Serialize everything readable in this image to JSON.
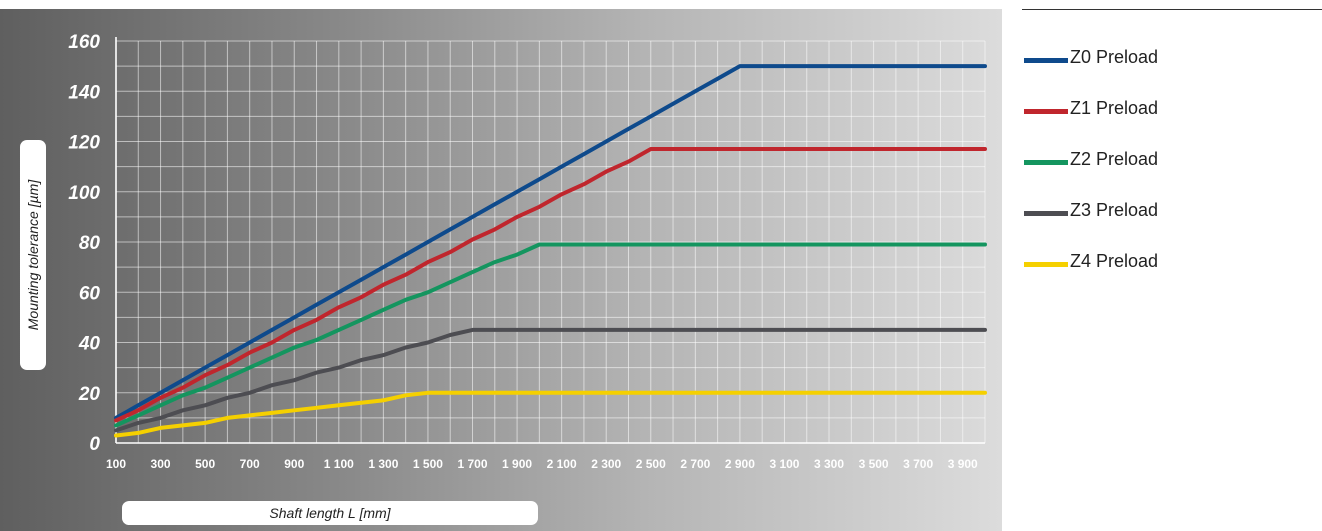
{
  "chart_data": {
    "type": "line",
    "title": "",
    "xlabel": "Shaft length L [mm]",
    "ylabel": "Mounting tolerance  [µm]",
    "xlim": [
      100,
      4000
    ],
    "ylim": [
      0,
      160
    ],
    "grid": true,
    "legend_position": "right",
    "y_ticks": [
      0,
      20,
      40,
      60,
      80,
      100,
      120,
      140,
      160
    ],
    "x_tick_labels": [
      "100",
      "300",
      "500",
      "700",
      "900",
      "1 100",
      "1 300",
      "1 500",
      "1 700",
      "1 900",
      "2 100",
      "2 300",
      "2 500",
      "2 700",
      "2 900",
      "3 100",
      "3 300",
      "3 500",
      "3 700",
      "3 900"
    ],
    "series": [
      {
        "name": "Z0 Preload",
        "color": "#0e4a8c",
        "x": [
          100,
          200,
          300,
          400,
          500,
          600,
          700,
          800,
          900,
          1000,
          1100,
          1200,
          1300,
          1400,
          1500,
          1600,
          1700,
          1800,
          1900,
          2000,
          2100,
          2200,
          2300,
          2400,
          2500,
          2600,
          2700,
          2800,
          2900,
          4000
        ],
        "y": [
          10,
          15,
          20,
          25,
          30,
          35,
          40,
          45,
          50,
          55,
          60,
          65,
          70,
          75,
          80,
          85,
          90,
          95,
          100,
          105,
          110,
          115,
          120,
          125,
          130,
          135,
          140,
          145,
          150,
          150
        ]
      },
      {
        "name": "Z1 Preload",
        "color": "#c0262d",
        "x": [
          100,
          200,
          300,
          400,
          500,
          600,
          700,
          800,
          900,
          1000,
          1100,
          1200,
          1300,
          1400,
          1500,
          1600,
          1700,
          1800,
          1900,
          2000,
          2100,
          2200,
          2300,
          2400,
          2500,
          4000
        ],
        "y": [
          9,
          13,
          18,
          22,
          27,
          31,
          36,
          40,
          45,
          49,
          54,
          58,
          63,
          67,
          72,
          76,
          81,
          85,
          90,
          94,
          99,
          103,
          108,
          112,
          117,
          117
        ]
      },
      {
        "name": "Z2 Preload",
        "color": "#14955f",
        "x": [
          100,
          200,
          300,
          400,
          500,
          600,
          700,
          800,
          900,
          1000,
          1100,
          1200,
          1300,
          1400,
          1500,
          1600,
          1700,
          1800,
          1900,
          2000,
          4000
        ],
        "y": [
          7,
          11,
          15,
          19,
          22,
          26,
          30,
          34,
          38,
          41,
          45,
          49,
          53,
          57,
          60,
          64,
          68,
          72,
          75,
          79,
          79
        ]
      },
      {
        "name": "Z3 Preload",
        "color": "#4d4d52",
        "x": [
          100,
          200,
          300,
          400,
          500,
          600,
          700,
          800,
          900,
          1000,
          1100,
          1200,
          1300,
          1400,
          1500,
          1600,
          1700,
          4000
        ],
        "y": [
          5,
          8,
          10,
          13,
          15,
          18,
          20,
          23,
          25,
          28,
          30,
          33,
          35,
          38,
          40,
          43,
          45,
          45
        ]
      },
      {
        "name": "Z4 Preload",
        "color": "#f5d000",
        "x": [
          100,
          200,
          300,
          400,
          500,
          600,
          700,
          800,
          900,
          1000,
          1100,
          1200,
          1300,
          1400,
          1500,
          4000
        ],
        "y": [
          3,
          4,
          6,
          7,
          8,
          10,
          11,
          12,
          13,
          14,
          15,
          16,
          17,
          19,
          20,
          20
        ]
      }
    ]
  }
}
